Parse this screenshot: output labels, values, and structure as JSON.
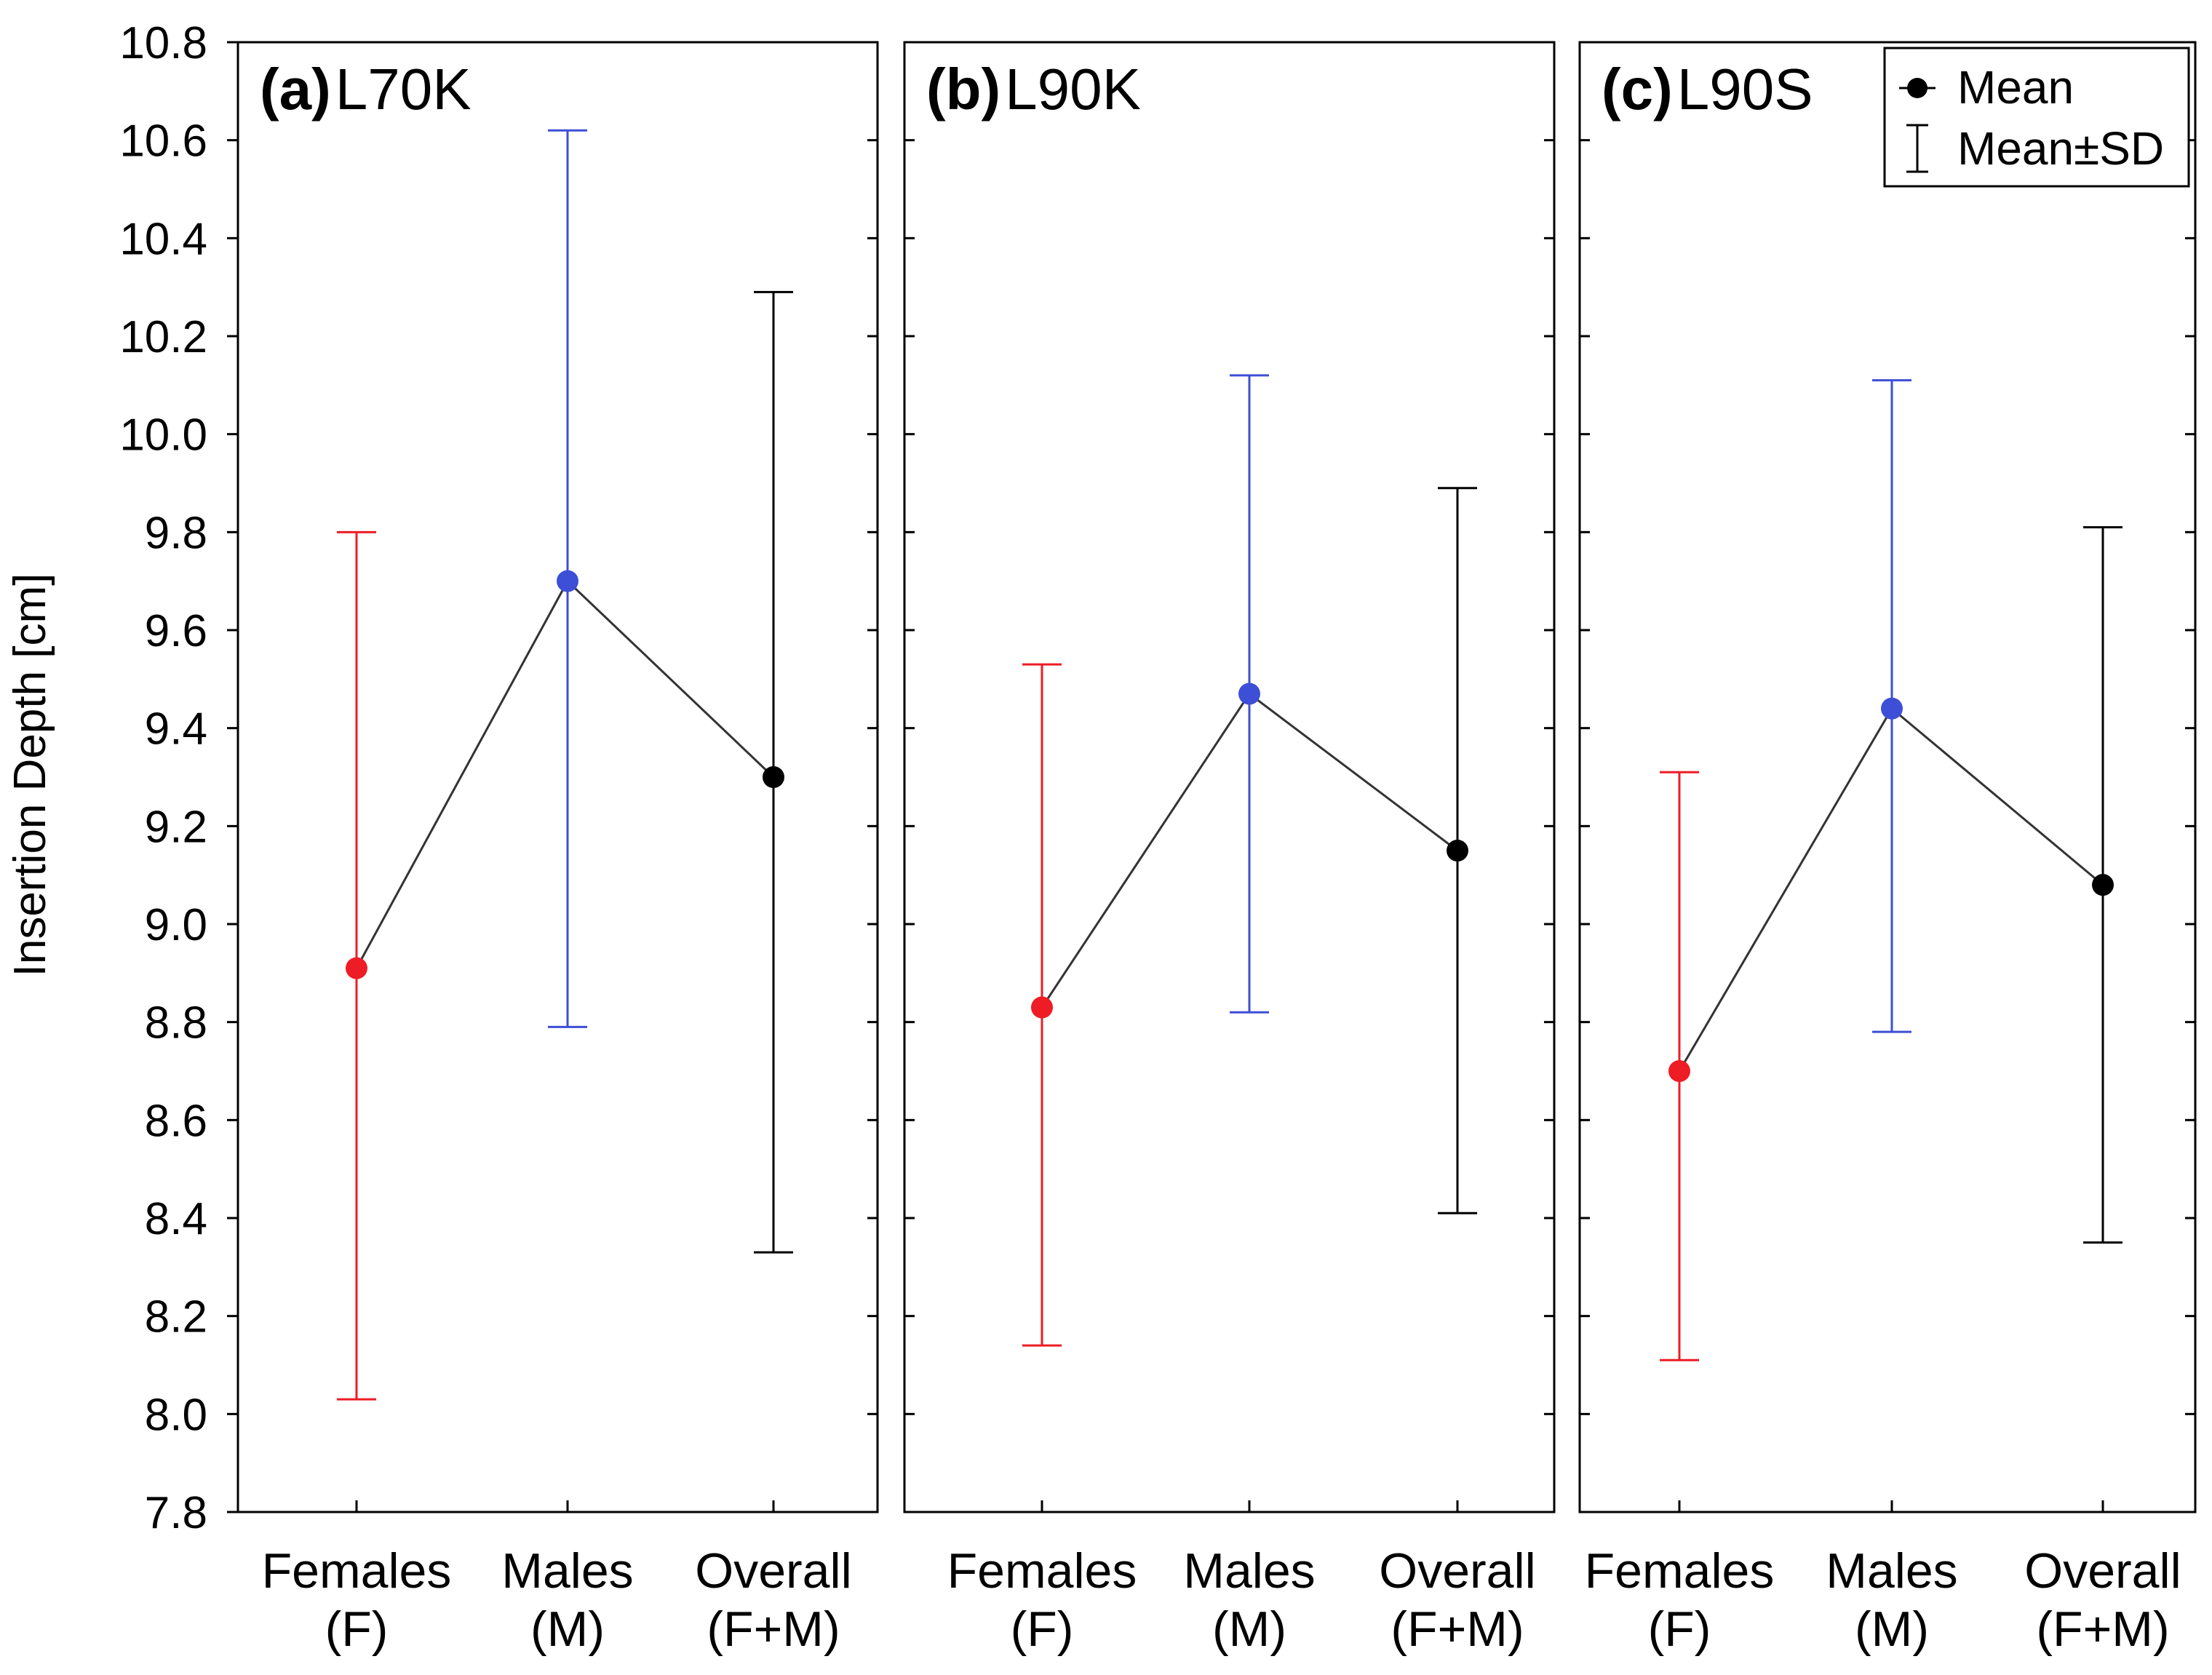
{
  "chart_data": {
    "type": "errorbar",
    "ylabel": "Insertion Depth [cm]",
    "ylim": [
      7.8,
      10.8
    ],
    "yticks": [
      "7.8",
      "8.0",
      "8.2",
      "8.4",
      "8.6",
      "8.8",
      "9.0",
      "9.2",
      "9.4",
      "9.6",
      "9.8",
      "10.0",
      "10.2",
      "10.4",
      "10.6",
      "10.8"
    ],
    "categories": [
      {
        "line1": "Females",
        "line2": "(F)"
      },
      {
        "line1": "Males",
        "line2": "(M)"
      },
      {
        "line1": "Overall",
        "line2": "(F+M)"
      }
    ],
    "colors": [
      "#ee1c25",
      "#3d4fd6",
      "#000000"
    ],
    "line_color": "#333333",
    "legend": {
      "mean": "Mean",
      "sd": "Mean±SD",
      "position": "top-right of panel c"
    },
    "panels": [
      {
        "tag": "(a)",
        "name": "L70K",
        "means": [
          8.91,
          9.7,
          9.3
        ],
        "lower": [
          8.03,
          8.79,
          8.33
        ],
        "upper": [
          9.8,
          10.62,
          10.29
        ]
      },
      {
        "tag": "(b)",
        "name": "L90K",
        "means": [
          8.83,
          9.47,
          9.15
        ],
        "lower": [
          8.14,
          8.82,
          8.41
        ],
        "upper": [
          9.53,
          10.12,
          9.89
        ]
      },
      {
        "tag": "(c)",
        "name": "L90S",
        "means": [
          8.7,
          9.44,
          9.08
        ],
        "lower": [
          8.11,
          8.78,
          8.35
        ],
        "upper": [
          9.31,
          10.11,
          9.81
        ]
      }
    ]
  }
}
